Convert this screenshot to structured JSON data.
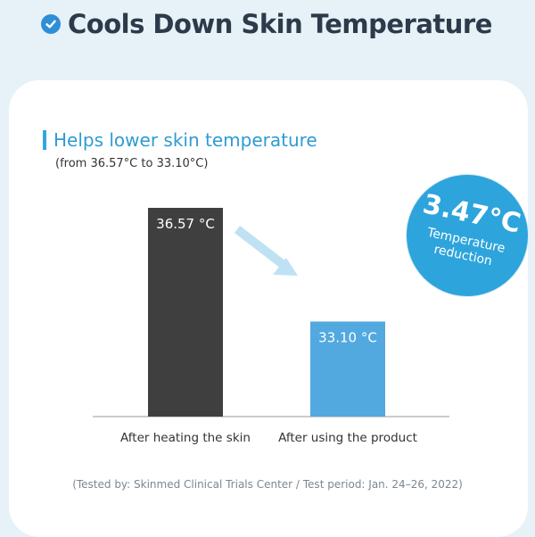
{
  "header": {
    "title": "Cools Down Skin Temperature",
    "check_color": "#2e8fd6"
  },
  "subtitle": "Helps lower skin temperature",
  "range_note": "(from 36.57°C to 33.10°C)",
  "badge": {
    "value": "3.47°C",
    "label": "Temperature reduction"
  },
  "footnote": "(Tested by: Skinmed Clinical Trials Center / Test period: Jan. 24–26, 2022)",
  "chart_data": {
    "type": "bar",
    "categories": [
      "After heating the skin",
      "After using the product"
    ],
    "values": [
      36.57,
      33.1
    ],
    "value_labels": [
      "36.57 °C",
      "33.10 °C"
    ],
    "colors": [
      "#3f3f3f",
      "#52a9e0"
    ],
    "title": "",
    "xlabel": "",
    "ylabel": ""
  }
}
